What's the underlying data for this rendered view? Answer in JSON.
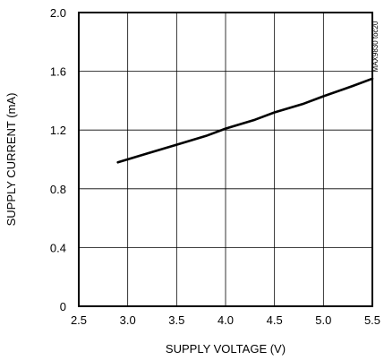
{
  "chart_data": {
    "type": "line",
    "xlabel": "SUPPLY VOLTAGE (V)",
    "ylabel": "SUPPLY CURRENT (mA)",
    "xlim": [
      2.5,
      5.5
    ],
    "ylim": [
      0,
      2.0
    ],
    "x_ticks": [
      "2.5",
      "3.0",
      "3.5",
      "4.0",
      "4.5",
      "5.0",
      "5.5"
    ],
    "y_ticks": [
      "0",
      "0.4",
      "0.8",
      "1.2",
      "1.6",
      "2.0"
    ],
    "grid": true,
    "side_label": "MAX9830 toc20",
    "series": [
      {
        "x": [
          2.9,
          3.2,
          3.5,
          3.8,
          4.0,
          4.3,
          4.5,
          4.8,
          5.0,
          5.3,
          5.5
        ],
        "y": [
          0.98,
          1.04,
          1.1,
          1.16,
          1.21,
          1.27,
          1.32,
          1.38,
          1.43,
          1.5,
          1.55
        ]
      }
    ],
    "colors": {
      "line": "#000000",
      "grid": "#000000",
      "frame": "#000000"
    }
  }
}
